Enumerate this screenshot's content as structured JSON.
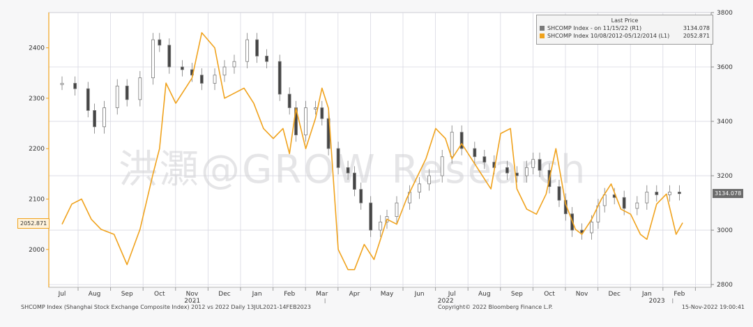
{
  "chart_data": {
    "type": "line",
    "title": "SHCOMP Index (Shanghai Stock Exchange Composite Index) 2012 vs 2022",
    "period": "Daily 13JUL2021-14FEB2023",
    "x_months": [
      "Jul",
      "Aug",
      "Sep",
      "Oct",
      "Nov",
      "Dec",
      "Jan",
      "Feb",
      "Mar",
      "Apr",
      "May",
      "Jun",
      "Jul",
      "Aug",
      "Sep",
      "Oct",
      "Nov",
      "Dec",
      "Jan",
      "Feb"
    ],
    "x_years": [
      "2021",
      "2022",
      "2023"
    ],
    "left_axis": {
      "ylim": [
        1925,
        2470
      ],
      "ticks": [
        2000,
        2100,
        2200,
        2300,
        2400
      ]
    },
    "right_axis": {
      "ylim": [
        2790,
        3800
      ],
      "ticks": [
        2800,
        3000,
        3200,
        3400,
        3600,
        3800
      ]
    },
    "legend_header": "Last Price",
    "series": [
      {
        "name": "SHCOMP Index - on 11/15/22  (R1)",
        "axis": "right",
        "style": "candlestick",
        "color": "#7a7a7a",
        "last": "3134.078",
        "x": [
          0,
          0.4,
          0.8,
          1,
          1.3,
          1.7,
          2,
          2.4,
          2.8,
          3,
          3.3,
          3.7,
          4,
          4.3,
          4.7,
          5,
          5.3,
          5.7,
          6,
          6.3,
          6.7,
          7,
          7.2,
          7.5,
          7.8,
          8,
          8.2,
          8.5,
          8.8,
          9,
          9.2,
          9.5,
          9.8,
          10,
          10.3,
          10.7,
          11,
          11.3,
          11.7,
          12,
          12.3,
          12.7,
          13,
          13.3,
          13.7,
          14,
          14.3,
          14.5,
          14.7,
          15,
          15.3,
          15.5,
          15.7,
          16,
          16.3,
          16.5,
          16.7,
          17,
          17.3,
          17.7,
          18,
          18.3,
          18.7,
          19
        ],
        "values": [
          3540,
          3520,
          3440,
          3380,
          3450,
          3530,
          3480,
          3560,
          3700,
          3680,
          3600,
          3590,
          3570,
          3540,
          3570,
          3600,
          3620,
          3700,
          3640,
          3620,
          3500,
          3450,
          3350,
          3450,
          3450,
          3410,
          3300,
          3230,
          3210,
          3150,
          3100,
          3000,
          3030,
          3050,
          3100,
          3140,
          3170,
          3200,
          3270,
          3360,
          3300,
          3270,
          3250,
          3230,
          3210,
          3200,
          3230,
          3260,
          3220,
          3160,
          3110,
          3060,
          3000,
          2990,
          3030,
          3090,
          3130,
          3120,
          3080,
          3100,
          3140,
          3130,
          3140,
          3134
        ]
      },
      {
        "name": "SHCOMP Index 10/08/2012-05/12/2014  (L1)",
        "axis": "left",
        "style": "line",
        "color": "#f0a21c",
        "last": "2052.871",
        "x": [
          0,
          0.3,
          0.6,
          0.9,
          1.2,
          1.6,
          2,
          2.4,
          2.8,
          3,
          3.2,
          3.5,
          3.8,
          4,
          4.3,
          4.7,
          5,
          5.3,
          5.6,
          5.9,
          6.2,
          6.5,
          6.8,
          7,
          7.2,
          7.5,
          7.8,
          8,
          8.2,
          8.5,
          8.8,
          9,
          9.3,
          9.6,
          10,
          10.3,
          10.6,
          10.9,
          11.2,
          11.5,
          11.8,
          12,
          12.3,
          12.6,
          12.9,
          13.2,
          13.5,
          13.8,
          14,
          14.3,
          14.6,
          14.9,
          15.2,
          15.5,
          15.8,
          16,
          16.3,
          16.6,
          16.9,
          17.2,
          17.5,
          17.8,
          18,
          18.3,
          18.6,
          18.9,
          19.1
        ],
        "values": [
          2050,
          2090,
          2100,
          2060,
          2040,
          2030,
          1970,
          2040,
          2150,
          2200,
          2330,
          2290,
          2320,
          2340,
          2430,
          2400,
          2300,
          2310,
          2320,
          2290,
          2240,
          2220,
          2240,
          2190,
          2280,
          2200,
          2260,
          2320,
          2280,
          2000,
          1960,
          1960,
          2010,
          1980,
          2060,
          2050,
          2100,
          2140,
          2180,
          2240,
          2220,
          2180,
          2210,
          2180,
          2150,
          2120,
          2230,
          2240,
          2120,
          2080,
          2070,
          2110,
          2200,
          2090,
          2040,
          2030,
          2060,
          2100,
          2130,
          2080,
          2070,
          2030,
          2020,
          2090,
          2110,
          2030,
          2053
        ]
      }
    ],
    "watermark": "洪灝@GROW Research",
    "footer_left": "SHCOMP Index (Shanghai Stock Exchange Composite Index) 2012 vs 2022  Daily 13JUL2021-14FEB2023",
    "footer_center": "Copyright© 2022 Bloomberg Finance L.P.",
    "footer_right": "15-Nov-2022 19:00:41"
  }
}
